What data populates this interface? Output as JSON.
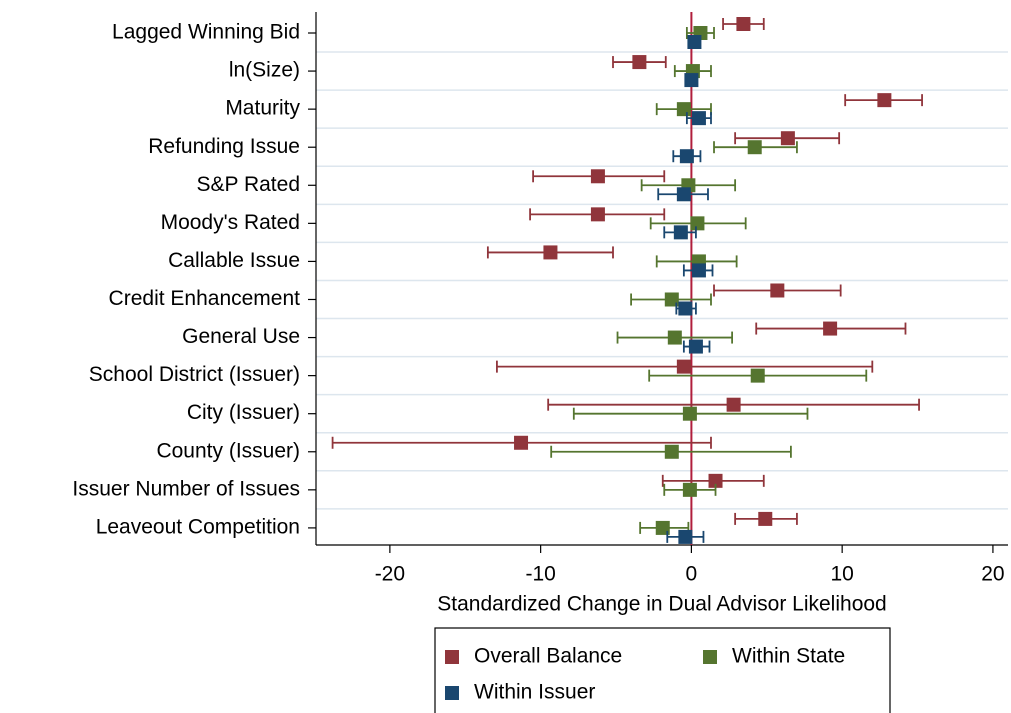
{
  "chart_data": {
    "type": "coefplot",
    "xlabel": "Standardized Change in Dual Advisor Likelihood",
    "categories": [
      "Lagged Winning Bid",
      "ln(Size)",
      "Maturity",
      "Refunding Issue",
      "S&P Rated",
      "Moody's Rated",
      "Callable Issue",
      "Credit Enhancement",
      "General Use",
      "School District (Issuer)",
      "City (Issuer)",
      "County (Issuer)",
      "Issuer Number of Issues",
      "Leaveout Competition"
    ],
    "series": [
      {
        "name": "Overall Balance",
        "color": "#90353b",
        "values": [
          3.45,
          -3.45,
          12.8,
          6.4,
          -6.2,
          -6.2,
          -9.35,
          5.7,
          9.2,
          -0.5,
          2.8,
          -11.3,
          1.6,
          4.9
        ],
        "low": [
          2.1,
          -5.2,
          10.2,
          2.9,
          -10.5,
          -10.7,
          -13.5,
          1.5,
          4.3,
          -12.9,
          -9.5,
          -23.8,
          -1.9,
          2.9
        ],
        "high": [
          4.8,
          -1.7,
          15.3,
          9.8,
          -1.8,
          -1.8,
          -5.2,
          9.9,
          14.2,
          12.0,
          15.1,
          1.3,
          4.8,
          7.0
        ]
      },
      {
        "name": "Within State",
        "color": "#55752f",
        "values": [
          0.6,
          0.1,
          -0.5,
          4.2,
          -0.2,
          0.4,
          0.5,
          -1.3,
          -1.1,
          4.4,
          -0.1,
          -1.3,
          -0.1,
          -1.9
        ],
        "low": [
          -0.3,
          -1.1,
          -2.3,
          1.5,
          -3.3,
          -2.7,
          -2.3,
          -4.0,
          -4.9,
          -2.8,
          -7.8,
          -9.3,
          -1.8,
          -3.4
        ],
        "high": [
          1.5,
          1.3,
          1.3,
          7.0,
          2.9,
          3.6,
          3.0,
          1.3,
          2.7,
          11.6,
          7.7,
          6.6,
          1.6,
          -0.2
        ]
      },
      {
        "name": "Within Issuer",
        "color": "#1a476f",
        "values": [
          0.2,
          0.0,
          0.5,
          -0.3,
          -0.5,
          -0.7,
          0.5,
          -0.4,
          0.3,
          null,
          null,
          null,
          null,
          -0.4
        ],
        "low": [
          -0.1,
          -0.3,
          -0.3,
          -1.2,
          -2.2,
          -1.8,
          -0.5,
          -1.0,
          -0.5,
          null,
          null,
          null,
          null,
          -1.6
        ],
        "high": [
          0.5,
          0.3,
          1.3,
          0.6,
          1.1,
          0.3,
          1.4,
          0.3,
          1.2,
          null,
          null,
          null,
          null,
          0.8
        ]
      }
    ],
    "xlim": [
      -24.9,
      21
    ],
    "xticks": [
      -20,
      -10,
      0,
      10,
      20
    ],
    "xline": 0,
    "xline_color": "#b01e3c",
    "grid": true
  }
}
